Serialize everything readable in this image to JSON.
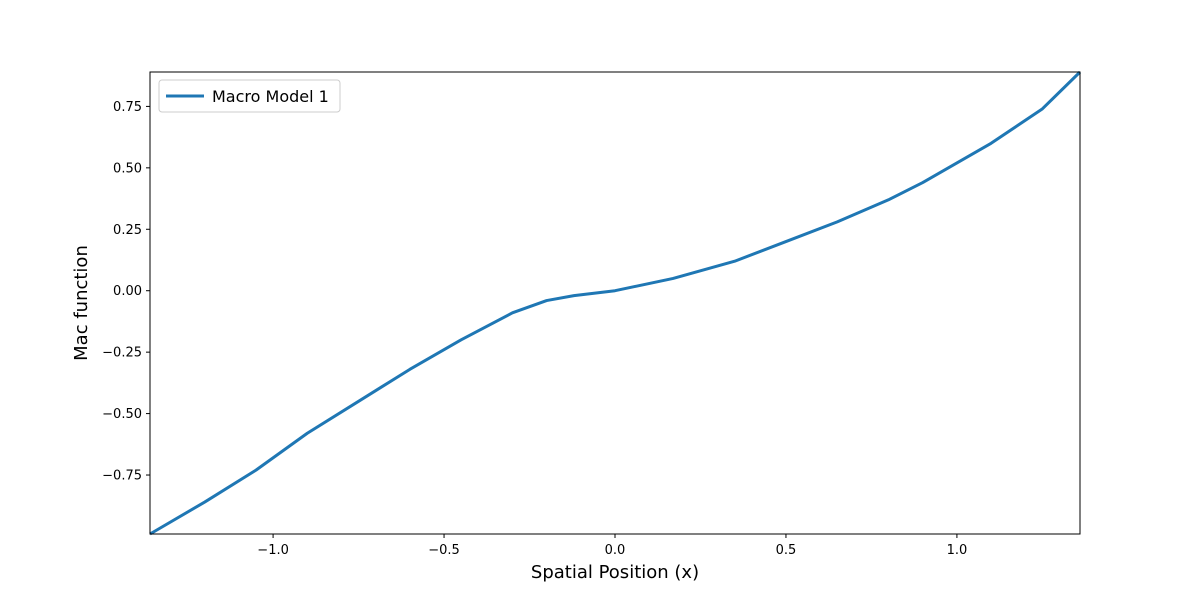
{
  "chart_data": {
    "type": "line",
    "title": "",
    "xlabel": "Spatial Position (x)",
    "ylabel": "Mac function",
    "xlim": [
      -1.36,
      1.36
    ],
    "ylim": [
      -0.99,
      0.89
    ],
    "xticks": [
      -1.0,
      -0.5,
      0.0,
      0.5,
      1.0
    ],
    "xtick_labels": [
      "−1.0",
      "−0.5",
      "0.0",
      "0.5",
      "1.0"
    ],
    "yticks": [
      -0.75,
      -0.5,
      -0.25,
      0.0,
      0.25,
      0.5,
      0.75
    ],
    "ytick_labels": [
      "−0.75",
      "−0.50",
      "−0.25",
      "0.00",
      "0.25",
      "0.50",
      "0.75"
    ],
    "grid": false,
    "legend": {
      "position": "top-left",
      "entries": [
        "Macro Model 1"
      ]
    },
    "series": [
      {
        "name": "Macro Model 1",
        "color": "#1f77b4",
        "x": [
          -1.36,
          -1.2,
          -1.05,
          -0.9,
          -0.75,
          -0.6,
          -0.45,
          -0.3,
          -0.2,
          -0.12,
          0.0,
          0.17,
          0.35,
          0.5,
          0.65,
          0.8,
          0.9,
          1.0,
          1.1,
          1.25,
          1.36
        ],
        "y": [
          -0.99,
          -0.86,
          -0.73,
          -0.58,
          -0.45,
          -0.32,
          -0.2,
          -0.09,
          -0.04,
          -0.02,
          0.0,
          0.05,
          0.12,
          0.2,
          0.28,
          0.37,
          0.44,
          0.52,
          0.6,
          0.74,
          0.89
        ]
      }
    ]
  }
}
